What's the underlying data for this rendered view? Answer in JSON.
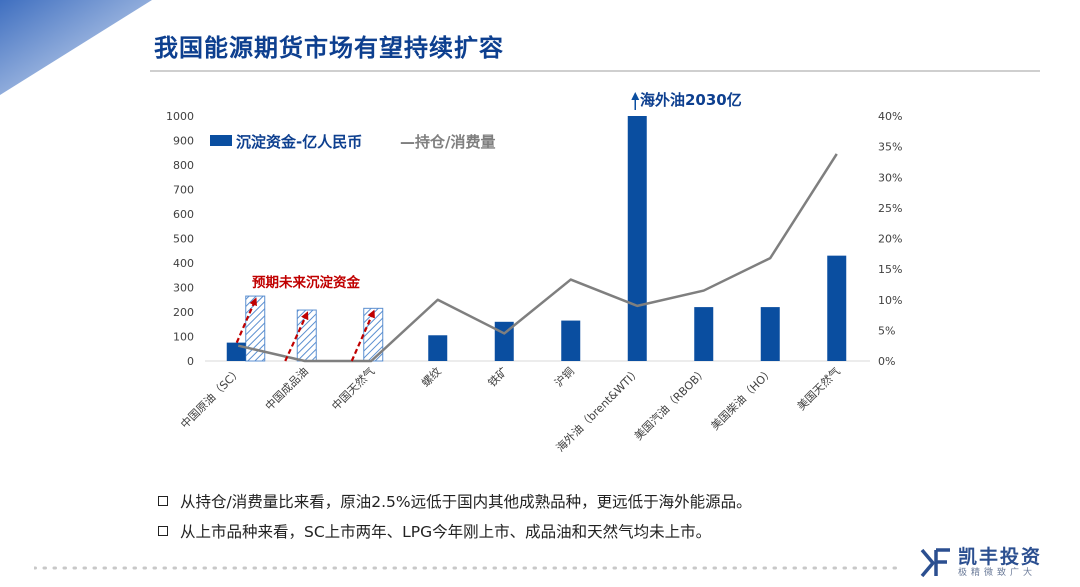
{
  "page": {
    "title": "我国能源期货市场有望持续扩容",
    "bullets": [
      "从持仓/消费量比来看，原油2.5%远低于国内其他成熟品种，更远低于海外能源品。",
      "从上市品种来看，SC上市两年、LPG今年刚上市、成品油和天然气均未上市。"
    ],
    "logo": {
      "name": "凯丰投资",
      "slogan": "极精微致广大"
    }
  },
  "colors": {
    "bar": "#0a4ea0",
    "hatch": "#5b8fd0",
    "line": "#7f7f7f",
    "title": "#0d3f8f",
    "annotation": "#c00000"
  },
  "chart_data": {
    "type": "bar+line",
    "categories": [
      "中国原油（SC）",
      "中国成品油",
      "中国天然气",
      "螺纹",
      "铁矿",
      "沪铜",
      "海外油（brent&WTI）",
      "美国汽油（RBOB）",
      "美国柴油（HO）",
      "美国天然气"
    ],
    "series": [
      {
        "name": "沉淀资金-亿人民币",
        "type": "bar",
        "axis": "left",
        "values": [
          75,
          0,
          0,
          105,
          160,
          165,
          1000,
          220,
          220,
          430
        ]
      },
      {
        "name": "预期未来沉淀资金",
        "type": "bar-hatched",
        "axis": "left",
        "values": [
          265,
          208,
          215,
          null,
          null,
          null,
          null,
          null,
          null,
          null
        ]
      },
      {
        "name": "持仓/消费量",
        "type": "line",
        "axis": "right",
        "values": [
          2.5,
          0,
          0,
          10,
          4.5,
          13.3,
          9,
          11.5,
          16.8,
          33.8
        ]
      }
    ],
    "y_left": {
      "min": 0,
      "max": 1000,
      "step": 100,
      "ticks": [
        "0",
        "100",
        "200",
        "300",
        "400",
        "500",
        "600",
        "700",
        "800",
        "900",
        "1000"
      ]
    },
    "y_right": {
      "min": 0,
      "max": 40,
      "step": 5,
      "ticks": [
        "0%",
        "5%",
        "10%",
        "15%",
        "20%",
        "25%",
        "30%",
        "35%",
        "40%"
      ]
    },
    "legend": {
      "bar": "沉淀资金-亿人民币",
      "line": "—持仓/消费量"
    },
    "annotations": {
      "future": "预期未来沉淀资金",
      "overflow": "海外油2030亿"
    }
  }
}
